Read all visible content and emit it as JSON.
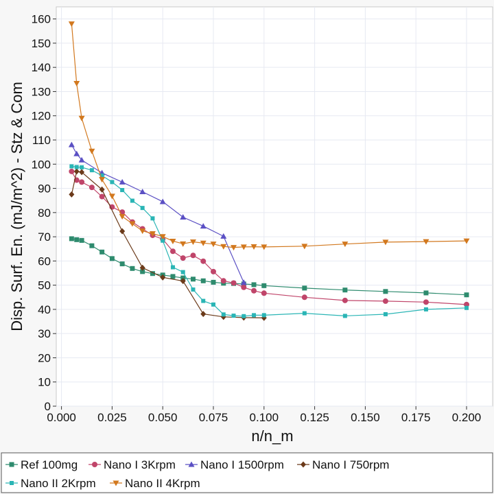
{
  "chart_data": {
    "type": "line",
    "title": "",
    "xlabel": "n/n_m",
    "ylabel": "Disp. Surf. En. (mJ/m^2) - Stz & Com",
    "xlim": [
      0,
      0.2
    ],
    "ylim": [
      0,
      165
    ],
    "x_ticks": [
      "0.000",
      "0.025",
      "0.050",
      "0.075",
      "0.100",
      "0.125",
      "0.150",
      "0.175",
      "0.200"
    ],
    "y_ticks": [
      "0",
      "10",
      "20",
      "30",
      "40",
      "50",
      "60",
      "70",
      "80",
      "90",
      "100",
      "110",
      "120",
      "130",
      "140",
      "150",
      "160"
    ],
    "grid": true,
    "legend_position": "bottom",
    "series": [
      {
        "name": "Ref 100mg",
        "color": "#2e8b6e",
        "marker": "square",
        "x": [
          0.005,
          0.0075,
          0.01,
          0.015,
          0.02,
          0.025,
          0.03,
          0.035,
          0.04,
          0.045,
          0.05,
          0.055,
          0.06,
          0.065,
          0.07,
          0.075,
          0.08,
          0.085,
          0.09,
          0.095,
          0.1,
          0.12,
          0.14,
          0.16,
          0.18,
          0.2
        ],
        "y": [
          69.2,
          68.8,
          68.5,
          66.3,
          63.7,
          61.0,
          58.8,
          56.9,
          55.6,
          54.8,
          54.2,
          53.6,
          53.0,
          52.5,
          51.8,
          51.2,
          50.8,
          50.7,
          50.5,
          50.2,
          49.8,
          48.8,
          48.0,
          47.4,
          46.8,
          46.0
        ]
      },
      {
        "name": "Nano I 3Krpm",
        "color": "#c0456a",
        "marker": "circle",
        "x": [
          0.005,
          0.0075,
          0.01,
          0.015,
          0.02,
          0.025,
          0.03,
          0.035,
          0.04,
          0.045,
          0.05,
          0.055,
          0.06,
          0.065,
          0.07,
          0.075,
          0.08,
          0.085,
          0.09,
          0.095,
          0.1,
          0.12,
          0.14,
          0.16,
          0.18,
          0.2
        ],
        "y": [
          97.0,
          93.4,
          92.6,
          90.4,
          86.6,
          82.3,
          80.2,
          76.1,
          73.3,
          70.6,
          69.0,
          64.0,
          61.2,
          62.3,
          59.9,
          55.6,
          51.8,
          50.9,
          49.1,
          47.7,
          46.7,
          45.0,
          43.7,
          43.4,
          43.0,
          42.0
        ]
      },
      {
        "name": "Nano I 1500rpm",
        "color": "#5b50c4",
        "marker": "triangle-up",
        "x": [
          0.005,
          0.0075,
          0.01,
          0.02,
          0.03,
          0.04,
          0.05,
          0.06,
          0.07,
          0.08,
          0.09
        ],
        "y": [
          108.0,
          104.3,
          101.7,
          96.4,
          92.6,
          88.6,
          84.5,
          78.1,
          74.4,
          70.2,
          51.1
        ]
      },
      {
        "name": "Nano I 750rpm",
        "color": "#6b3a1a",
        "marker": "diamond",
        "x": [
          0.005,
          0.0075,
          0.01,
          0.02,
          0.03,
          0.04,
          0.05,
          0.06,
          0.07,
          0.08,
          0.09,
          0.1
        ],
        "y": [
          87.5,
          97.0,
          96.7,
          89.5,
          72.3,
          57.2,
          53.2,
          51.7,
          38.1,
          36.9,
          36.6,
          36.5
        ]
      },
      {
        "name": "Nano II 2Krpm",
        "color": "#2ab5b5",
        "marker": "square-small",
        "x": [
          0.005,
          0.0075,
          0.01,
          0.015,
          0.02,
          0.025,
          0.03,
          0.035,
          0.04,
          0.045,
          0.05,
          0.055,
          0.06,
          0.065,
          0.07,
          0.075,
          0.08,
          0.085,
          0.09,
          0.095,
          0.1,
          0.12,
          0.14,
          0.16,
          0.18,
          0.2
        ],
        "y": [
          99.1,
          98.8,
          98.7,
          97.5,
          95.3,
          92.6,
          89.3,
          84.9,
          81.9,
          77.6,
          68.4,
          57.4,
          55.4,
          48.2,
          43.5,
          42.0,
          37.9,
          37.4,
          37.2,
          37.6,
          37.6,
          38.4,
          37.3,
          38.0,
          40.0,
          40.6
        ]
      },
      {
        "name": "Nano II 4Krpm",
        "color": "#d2781e",
        "marker": "triangle-down",
        "x": [
          0.005,
          0.0075,
          0.01,
          0.015,
          0.02,
          0.025,
          0.03,
          0.035,
          0.04,
          0.045,
          0.05,
          0.055,
          0.06,
          0.065,
          0.07,
          0.075,
          0.08,
          0.085,
          0.09,
          0.095,
          0.1,
          0.12,
          0.14,
          0.16,
          0.18,
          0.2
        ],
        "y": [
          158.0,
          133.4,
          119.0,
          105.4,
          93.7,
          86.8,
          78.4,
          75.4,
          72.4,
          71.3,
          70.1,
          68.2,
          67.1,
          67.9,
          67.4,
          67.0,
          66.0,
          65.6,
          65.8,
          65.9,
          65.8,
          66.1,
          67.0,
          67.8,
          68.0,
          68.3
        ]
      }
    ]
  }
}
